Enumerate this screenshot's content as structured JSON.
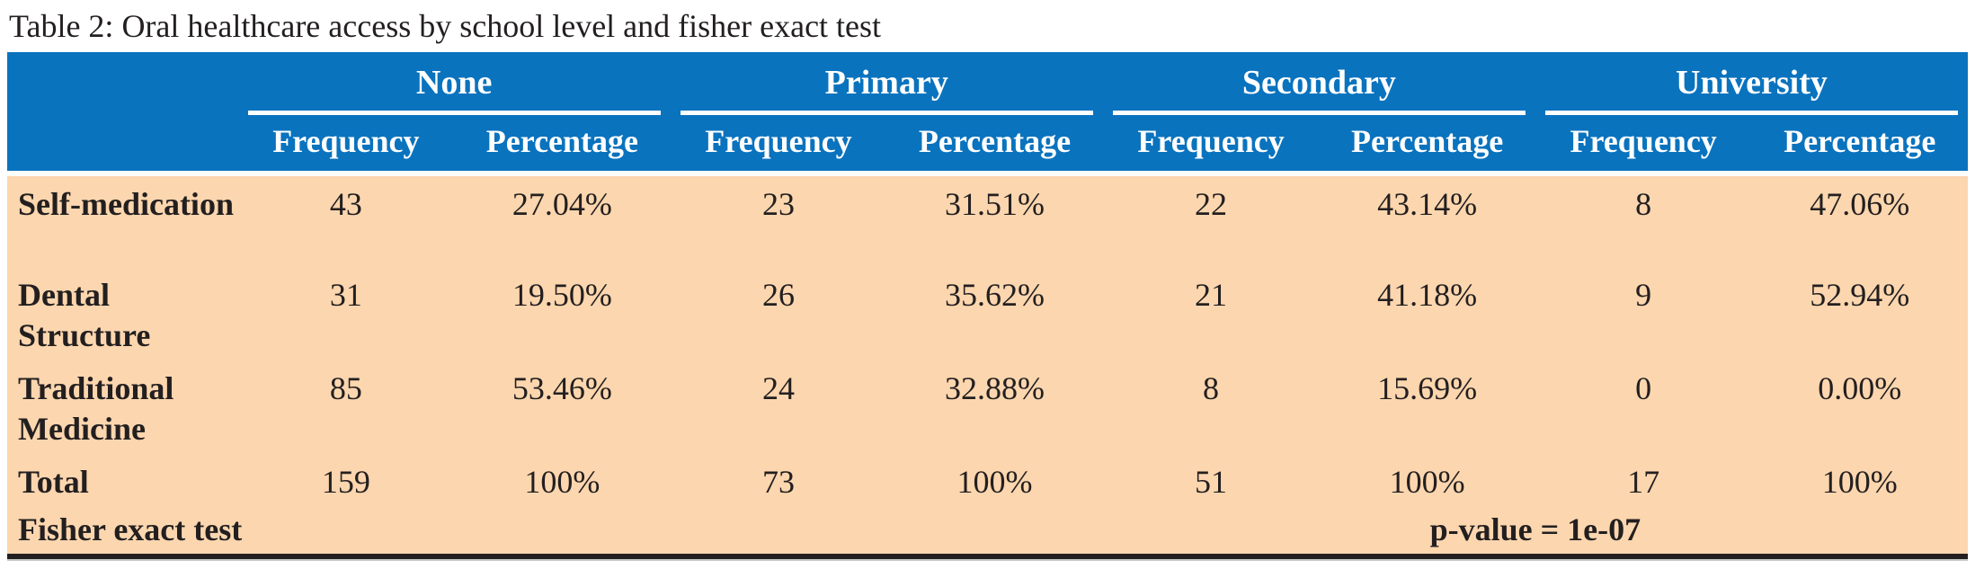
{
  "title": "Table 2: Oral healthcare access by school level and fisher exact test",
  "colors": {
    "header_bg": "#0a73be",
    "header_text": "#ffffff",
    "body_bg": "#fcd6ae",
    "body_text": "#231f20",
    "bottom_border": "#231f20"
  },
  "table": {
    "groups": [
      "None",
      "Primary",
      "Secondary",
      "University"
    ],
    "sub_headers": [
      "Frequency",
      "Percentage"
    ],
    "rows": [
      {
        "label": "Self-medication",
        "values": [
          "43",
          "27.04%",
          "23",
          "31.51%",
          "22",
          "43.14%",
          "8",
          "47.06%"
        ]
      },
      {
        "label": "Dental Structure",
        "values": [
          "31",
          "19.50%",
          "26",
          "35.62%",
          "21",
          "41.18%",
          "9",
          "52.94%"
        ]
      },
      {
        "label": "Traditional Medicine",
        "values": [
          "85",
          "53.46%",
          "24",
          "32.88%",
          "8",
          "15.69%",
          "0",
          "0.00%"
        ]
      },
      {
        "label": "Total",
        "values": [
          "159",
          "100%",
          "73",
          "100%",
          "51",
          "100%",
          "17",
          "100%"
        ]
      }
    ],
    "footer": {
      "label": "Fisher exact test",
      "p_value": "p-value = 1e-07"
    }
  },
  "chart_data": {
    "type": "table",
    "title": "Table 2: Oral healthcare access by school level and fisher exact test",
    "column_groups": [
      "None",
      "Primary",
      "Secondary",
      "University"
    ],
    "columns": [
      "None Frequency",
      "None Percentage",
      "Primary Frequency",
      "Primary Percentage",
      "Secondary Frequency",
      "Secondary Percentage",
      "University Frequency",
      "University Percentage"
    ],
    "rows": [
      {
        "category": "Self-medication",
        "values": [
          43,
          "27.04%",
          23,
          "31.51%",
          22,
          "43.14%",
          8,
          "47.06%"
        ]
      },
      {
        "category": "Dental Structure",
        "values": [
          31,
          "19.50%",
          26,
          "35.62%",
          21,
          "41.18%",
          9,
          "52.94%"
        ]
      },
      {
        "category": "Traditional Medicine",
        "values": [
          85,
          "53.46%",
          24,
          "32.88%",
          8,
          "15.69%",
          0,
          "0.00%"
        ]
      },
      {
        "category": "Total",
        "values": [
          159,
          "100%",
          73,
          "100%",
          51,
          "100%",
          17,
          "100%"
        ]
      }
    ],
    "fisher_exact_test": "p-value = 1e-07"
  }
}
